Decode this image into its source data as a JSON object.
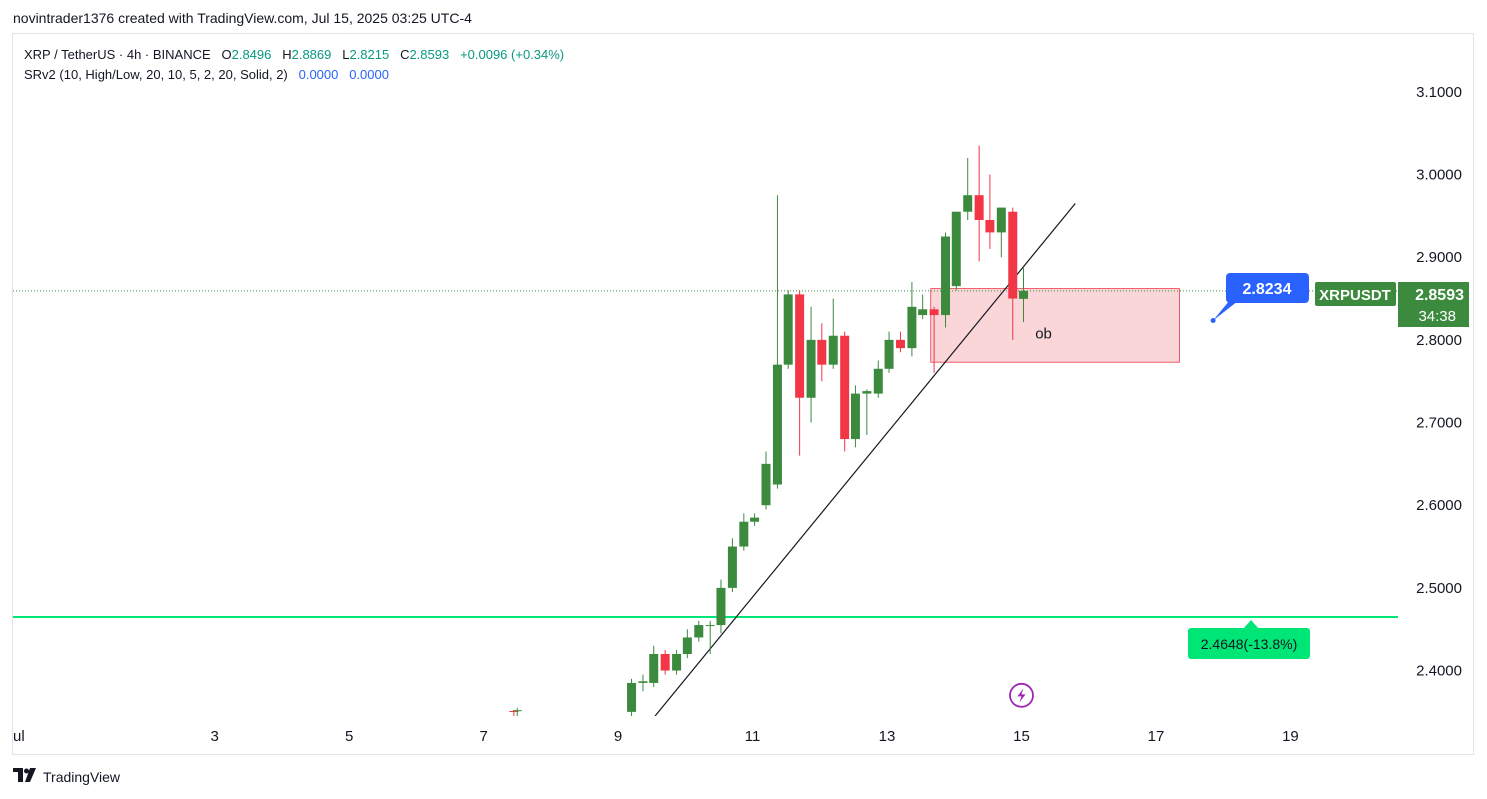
{
  "header": {
    "caption": "novintrader1376 created with TradingView.com, Jul 15, 2025 03:25 UTC-4"
  },
  "legend": {
    "symbol": "XRP / TetherUS · 4h · BINANCE",
    "o_label": "O",
    "o_value": "2.8496",
    "h_label": "H",
    "h_value": "2.8869",
    "l_label": "L",
    "l_value": "2.8215",
    "c_label": "C",
    "c_value": "2.8593",
    "change": "+0.0096 (+0.34%)",
    "indicator": "SRv2 (10, High/Low, 20, 10, 5, 2, 20, Solid, 2)",
    "ind_v1": "0.0000",
    "ind_v2": "0.0000"
  },
  "footer": {
    "brand": "TradingView",
    "logo_icon": "tradingview-logo-icon"
  },
  "colors": {
    "up": "#3b8a3e",
    "down": "#f23645",
    "green_line": "#00e676",
    "blue": "#2962ff",
    "zone": "#f8c8cc"
  },
  "chart_data": {
    "type": "candlestick",
    "ylim": [
      2.345,
      3.17
    ],
    "xlim": [
      0,
      20.6
    ],
    "y_ticks": [
      "3.1000",
      "3.0000",
      "2.9000",
      "2.8000",
      "2.7000",
      "2.6000",
      "2.5000",
      "2.4000"
    ],
    "y_tick_values": [
      3.1,
      3.0,
      2.9,
      2.8,
      2.7,
      2.6,
      2.5,
      2.4
    ],
    "x_ticks": [
      "ul",
      "3",
      "5",
      "7",
      "9",
      "11",
      "13",
      "15",
      "17",
      "19"
    ],
    "x_tick_values": [
      1,
      3,
      5,
      7,
      9,
      11,
      13,
      15,
      17,
      19
    ],
    "candles": [
      {
        "x": 7.45,
        "o": 2.351,
        "h": 2.352,
        "l": 2.345,
        "c": 2.35
      },
      {
        "x": 7.5,
        "o": 2.351,
        "h": 2.355,
        "l": 2.345,
        "c": 2.352
      },
      {
        "x": 9.2,
        "o": 2.35,
        "h": 2.39,
        "l": 2.345,
        "c": 2.385
      },
      {
        "x": 9.37,
        "o": 2.385,
        "h": 2.395,
        "l": 2.375,
        "c": 2.387
      },
      {
        "x": 9.53,
        "o": 2.385,
        "h": 2.43,
        "l": 2.38,
        "c": 2.42
      },
      {
        "x": 9.7,
        "o": 2.42,
        "h": 2.425,
        "l": 2.395,
        "c": 2.4
      },
      {
        "x": 9.87,
        "o": 2.4,
        "h": 2.425,
        "l": 2.395,
        "c": 2.42
      },
      {
        "x": 10.03,
        "o": 2.42,
        "h": 2.45,
        "l": 2.415,
        "c": 2.44
      },
      {
        "x": 10.2,
        "o": 2.44,
        "h": 2.46,
        "l": 2.435,
        "c": 2.455
      },
      {
        "x": 10.37,
        "o": 2.455,
        "h": 2.46,
        "l": 2.42,
        "c": 2.455
      },
      {
        "x": 10.53,
        "o": 2.455,
        "h": 2.51,
        "l": 2.445,
        "c": 2.5
      },
      {
        "x": 10.7,
        "o": 2.5,
        "h": 2.56,
        "l": 2.495,
        "c": 2.55
      },
      {
        "x": 10.87,
        "o": 2.55,
        "h": 2.59,
        "l": 2.545,
        "c": 2.58
      },
      {
        "x": 11.03,
        "o": 2.58,
        "h": 2.59,
        "l": 2.575,
        "c": 2.585
      },
      {
        "x": 11.2,
        "o": 2.6,
        "h": 2.665,
        "l": 2.595,
        "c": 2.65
      },
      {
        "x": 11.37,
        "o": 2.625,
        "h": 2.975,
        "l": 2.62,
        "c": 2.77
      },
      {
        "x": 11.53,
        "o": 2.77,
        "h": 2.86,
        "l": 2.765,
        "c": 2.855
      },
      {
        "x": 11.7,
        "o": 2.855,
        "h": 2.86,
        "l": 2.66,
        "c": 2.73
      },
      {
        "x": 11.87,
        "o": 2.73,
        "h": 2.84,
        "l": 2.7,
        "c": 2.8
      },
      {
        "x": 12.03,
        "o": 2.8,
        "h": 2.82,
        "l": 2.75,
        "c": 2.77
      },
      {
        "x": 12.2,
        "o": 2.77,
        "h": 2.85,
        "l": 2.765,
        "c": 2.805
      },
      {
        "x": 12.37,
        "o": 2.805,
        "h": 2.81,
        "l": 2.665,
        "c": 2.68
      },
      {
        "x": 12.53,
        "o": 2.68,
        "h": 2.745,
        "l": 2.67,
        "c": 2.735
      },
      {
        "x": 12.7,
        "o": 2.735,
        "h": 2.74,
        "l": 2.685,
        "c": 2.738
      },
      {
        "x": 12.87,
        "o": 2.735,
        "h": 2.775,
        "l": 2.73,
        "c": 2.765
      },
      {
        "x": 13.03,
        "o": 2.765,
        "h": 2.81,
        "l": 2.76,
        "c": 2.8
      },
      {
        "x": 13.2,
        "o": 2.8,
        "h": 2.81,
        "l": 2.785,
        "c": 2.79
      },
      {
        "x": 13.37,
        "o": 2.79,
        "h": 2.87,
        "l": 2.78,
        "c": 2.84
      },
      {
        "x": 13.53,
        "o": 2.83,
        "h": 2.855,
        "l": 2.825,
        "c": 2.837
      },
      {
        "x": 13.7,
        "o": 2.837,
        "h": 2.84,
        "l": 2.76,
        "c": 2.83
      },
      {
        "x": 13.87,
        "o": 2.83,
        "h": 2.93,
        "l": 2.815,
        "c": 2.925
      },
      {
        "x": 14.03,
        "o": 2.865,
        "h": 2.955,
        "l": 2.86,
        "c": 2.955
      },
      {
        "x": 14.2,
        "o": 2.955,
        "h": 3.02,
        "l": 2.945,
        "c": 2.975
      },
      {
        "x": 14.37,
        "o": 2.975,
        "h": 3.035,
        "l": 2.895,
        "c": 2.945
      },
      {
        "x": 14.53,
        "o": 2.945,
        "h": 3.0,
        "l": 2.91,
        "c": 2.93
      },
      {
        "x": 14.7,
        "o": 2.93,
        "h": 2.96,
        "l": 2.9,
        "c": 2.96
      },
      {
        "x": 14.87,
        "o": 2.955,
        "h": 2.96,
        "l": 2.8,
        "c": 2.85
      },
      {
        "x": 15.03,
        "o": 2.8496,
        "h": 2.8869,
        "l": 2.8215,
        "c": 2.8593
      }
    ],
    "trendline": {
      "x1": 9.55,
      "y1": 2.345,
      "x2": 15.8,
      "y2": 2.965
    },
    "order_block": {
      "x1": 13.65,
      "x2": 17.35,
      "y_top": 2.862,
      "y_bottom": 2.773,
      "label": "ob"
    },
    "support_line": {
      "y": 2.4648,
      "label": "2.4648(-13.8%)"
    },
    "current_price_line": {
      "y": 2.8593
    },
    "price_label": {
      "symbol": "XRPUSDT",
      "price": "2.8593",
      "countdown": "34:38"
    },
    "callout": {
      "value": "2.8234",
      "x": 17.85,
      "y": 2.8234
    },
    "alert_icon": {
      "x": 15.0,
      "y": 2.37,
      "name": "lightning-alert-icon"
    }
  }
}
